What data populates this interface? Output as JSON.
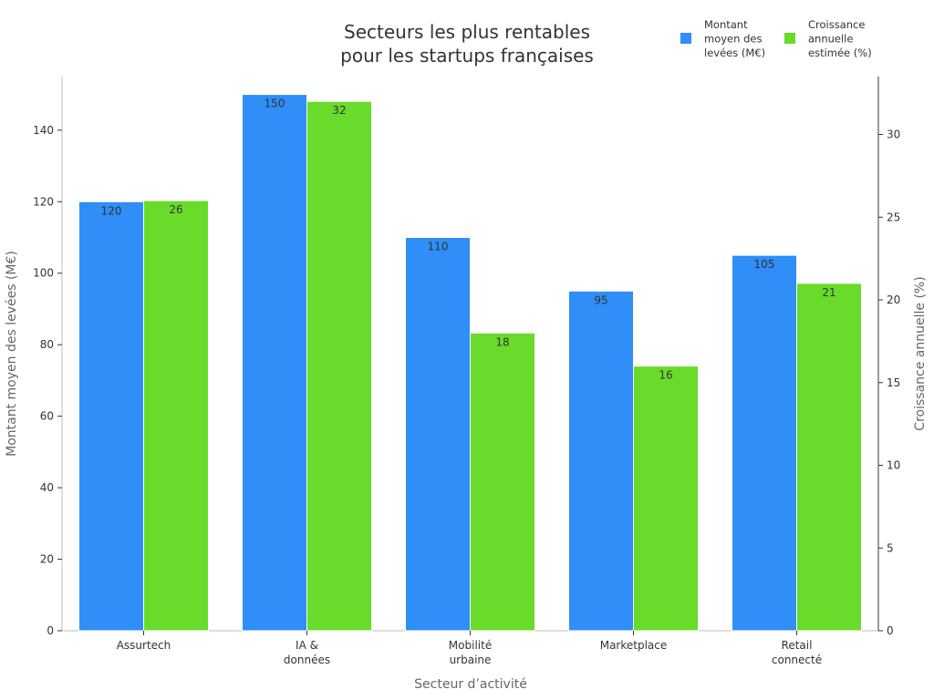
{
  "chart_data": {
    "type": "bar",
    "title": [
      "Secteurs les plus rentables",
      "pour les startups françaises"
    ],
    "xlabel": "Secteur d’activité",
    "ylabel_left": "Montant moyen des levées (M€)",
    "ylabel_right": "Croissance annuelle (%)",
    "categories": [
      [
        "Assurtech"
      ],
      [
        "IA &",
        "données"
      ],
      [
        "Mobilité",
        "urbaine"
      ],
      [
        "Marketplace"
      ],
      [
        "Retail",
        "connecté"
      ]
    ],
    "series": [
      {
        "name": [
          "Montant",
          "moyen des",
          "levées (M€)"
        ],
        "axis": "left",
        "color": "#2f8ef7",
        "values": [
          120,
          150,
          110,
          95,
          105
        ]
      },
      {
        "name": [
          "Croissance",
          "annuelle",
          "estimée (%)"
        ],
        "axis": "right",
        "color": "#69db2a",
        "values": [
          26,
          32,
          18,
          16,
          21
        ]
      }
    ],
    "ylim_left": [
      0,
      155
    ],
    "yticks_left": [
      0,
      20,
      40,
      60,
      80,
      100,
      120,
      140
    ],
    "ylim_right": [
      0,
      33.5
    ],
    "yticks_right": [
      0,
      5,
      10,
      15,
      20,
      25,
      30
    ],
    "grid": false,
    "legend_position": "top-right"
  }
}
